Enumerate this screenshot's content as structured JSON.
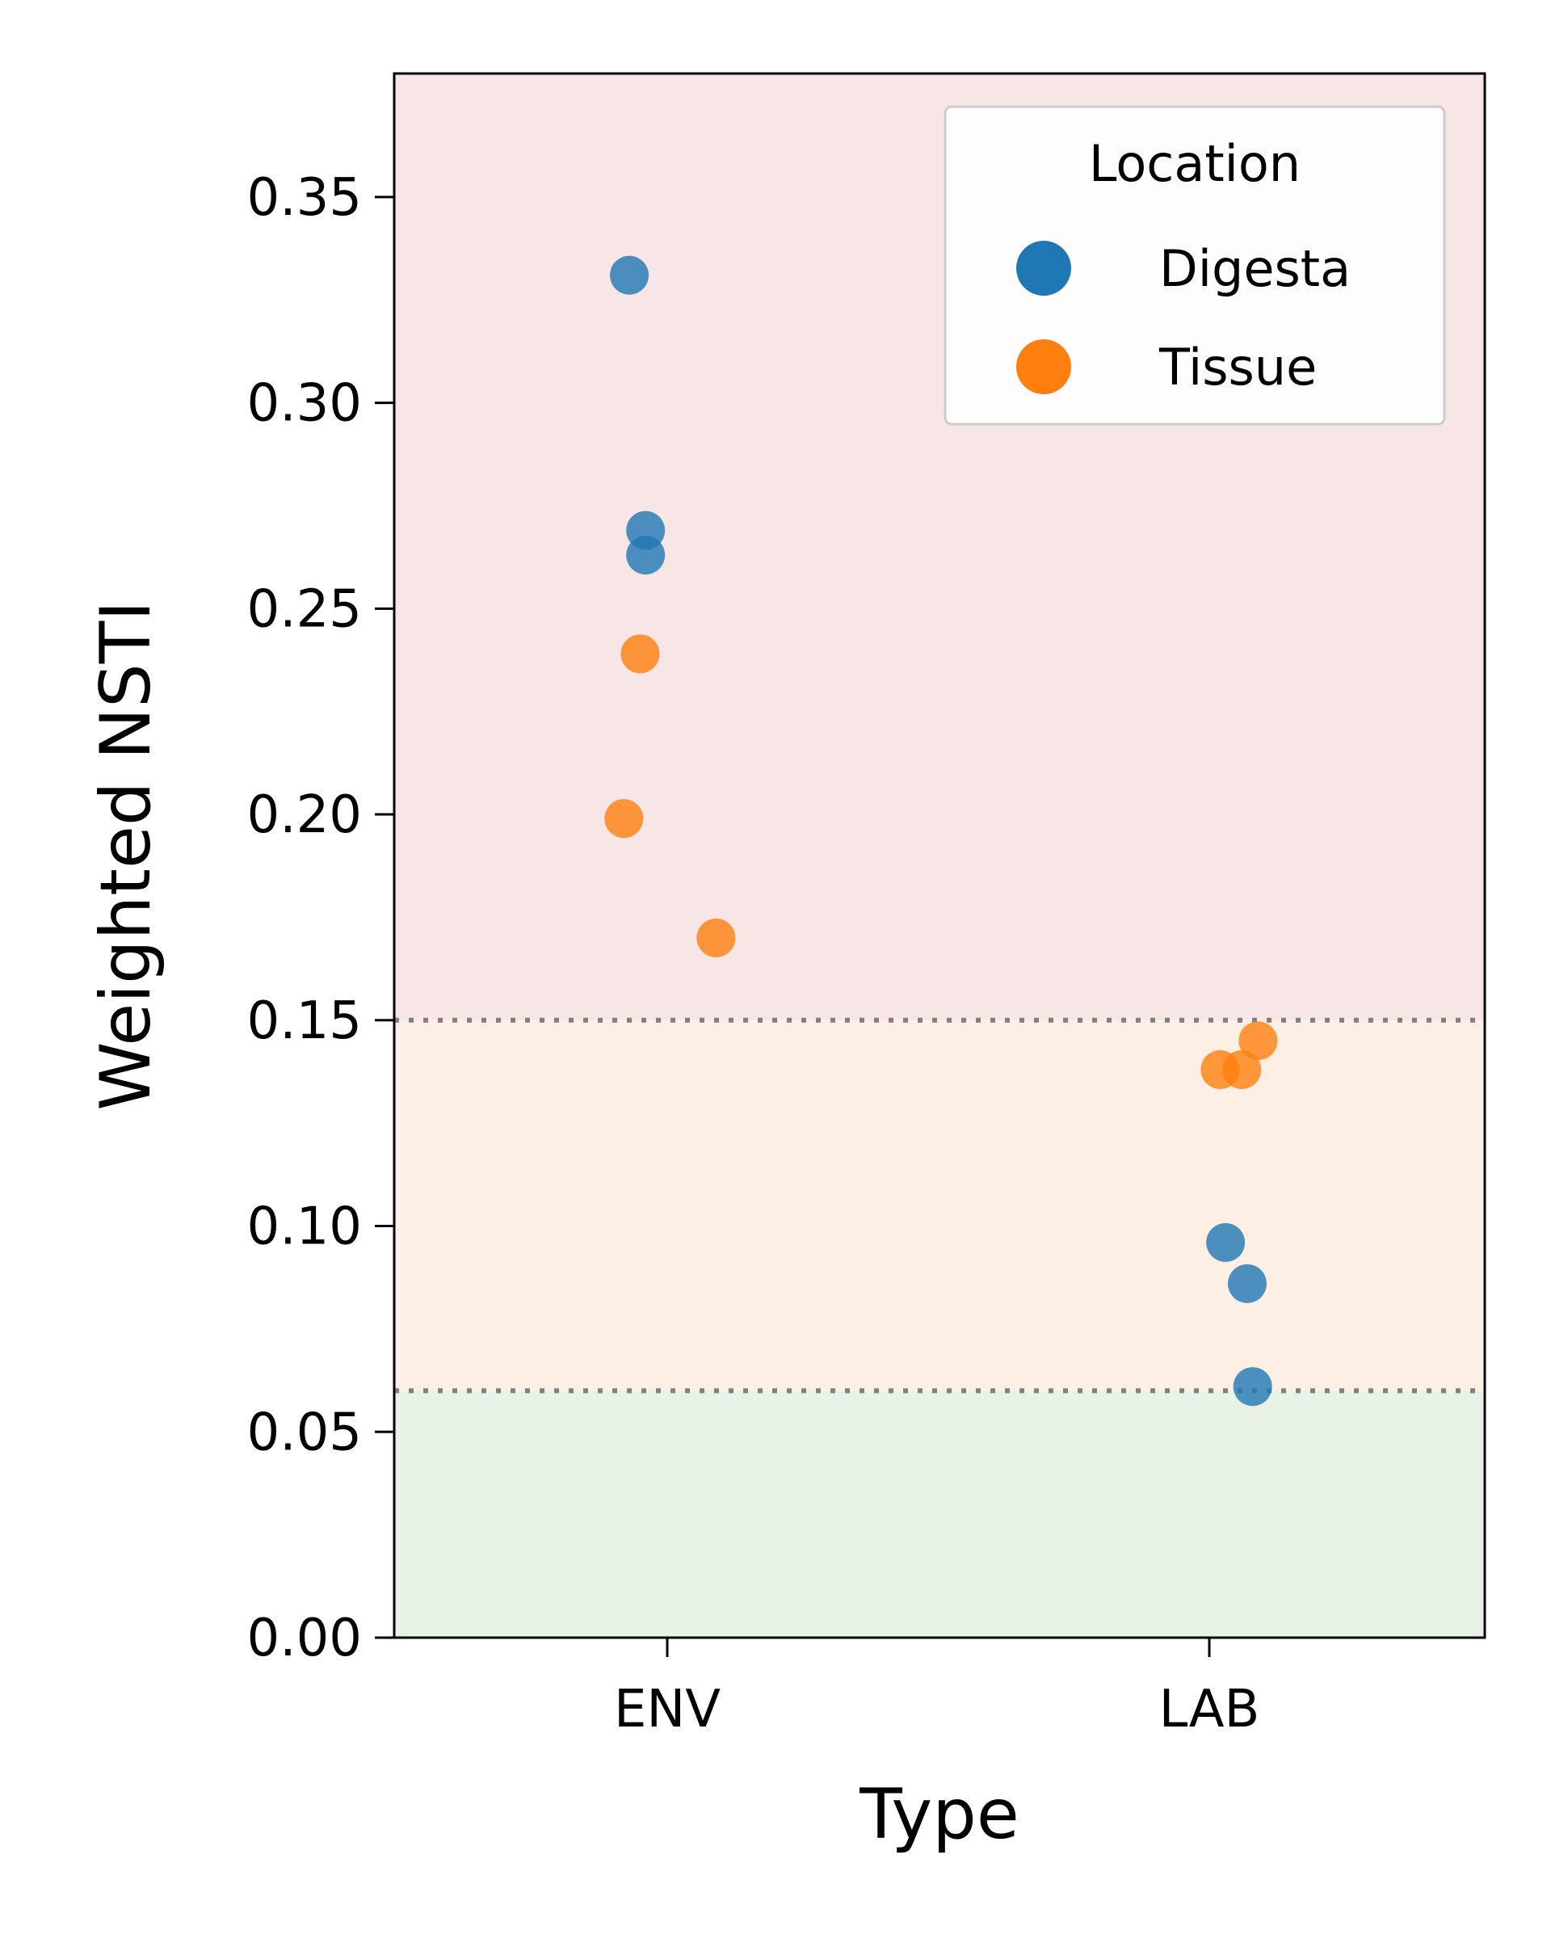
{
  "chart_data": {
    "type": "scatter",
    "xlabel": "Type",
    "ylabel": "Weighted NSTI",
    "categories": [
      "ENV",
      "LAB"
    ],
    "ylim": [
      0,
      0.38
    ],
    "yticks": [
      "0.00",
      "0.05",
      "0.10",
      "0.15",
      "0.20",
      "0.25",
      "0.30",
      "0.35"
    ],
    "ytick_values": [
      0,
      0.05,
      0.1,
      0.15,
      0.2,
      0.25,
      0.3,
      0.35
    ],
    "thresholds": [
      0.06,
      0.15
    ],
    "bands": [
      {
        "from": 0,
        "to": 0.06,
        "color": "#e8f2e6"
      },
      {
        "from": 0.06,
        "to": 0.15,
        "color": "#fdefe4"
      },
      {
        "from": 0.15,
        "to": 0.38,
        "color": "#f8e6e6"
      }
    ],
    "grid": false,
    "legend": {
      "title": "Location",
      "placement": "top-right"
    },
    "series": [
      {
        "name": "Digesta",
        "color": "#1f77b4",
        "points": [
          {
            "category": "ENV",
            "jitter": -0.07,
            "y": 0.331
          },
          {
            "category": "ENV",
            "jitter": -0.04,
            "y": 0.269
          },
          {
            "category": "ENV",
            "jitter": -0.04,
            "y": 0.263
          },
          {
            "category": "LAB",
            "jitter": 0.03,
            "y": 0.096
          },
          {
            "category": "LAB",
            "jitter": 0.07,
            "y": 0.086
          },
          {
            "category": "LAB",
            "jitter": 0.08,
            "y": 0.061
          }
        ]
      },
      {
        "name": "Tissue",
        "color": "#ff7f0e",
        "points": [
          {
            "category": "ENV",
            "jitter": -0.05,
            "y": 0.239
          },
          {
            "category": "ENV",
            "jitter": -0.08,
            "y": 0.199
          },
          {
            "category": "ENV",
            "jitter": 0.09,
            "y": 0.17
          },
          {
            "category": "LAB",
            "jitter": 0.09,
            "y": 0.145
          },
          {
            "category": "LAB",
            "jitter": 0.06,
            "y": 0.138
          },
          {
            "category": "LAB",
            "jitter": 0.02,
            "y": 0.138
          }
        ]
      }
    ]
  }
}
